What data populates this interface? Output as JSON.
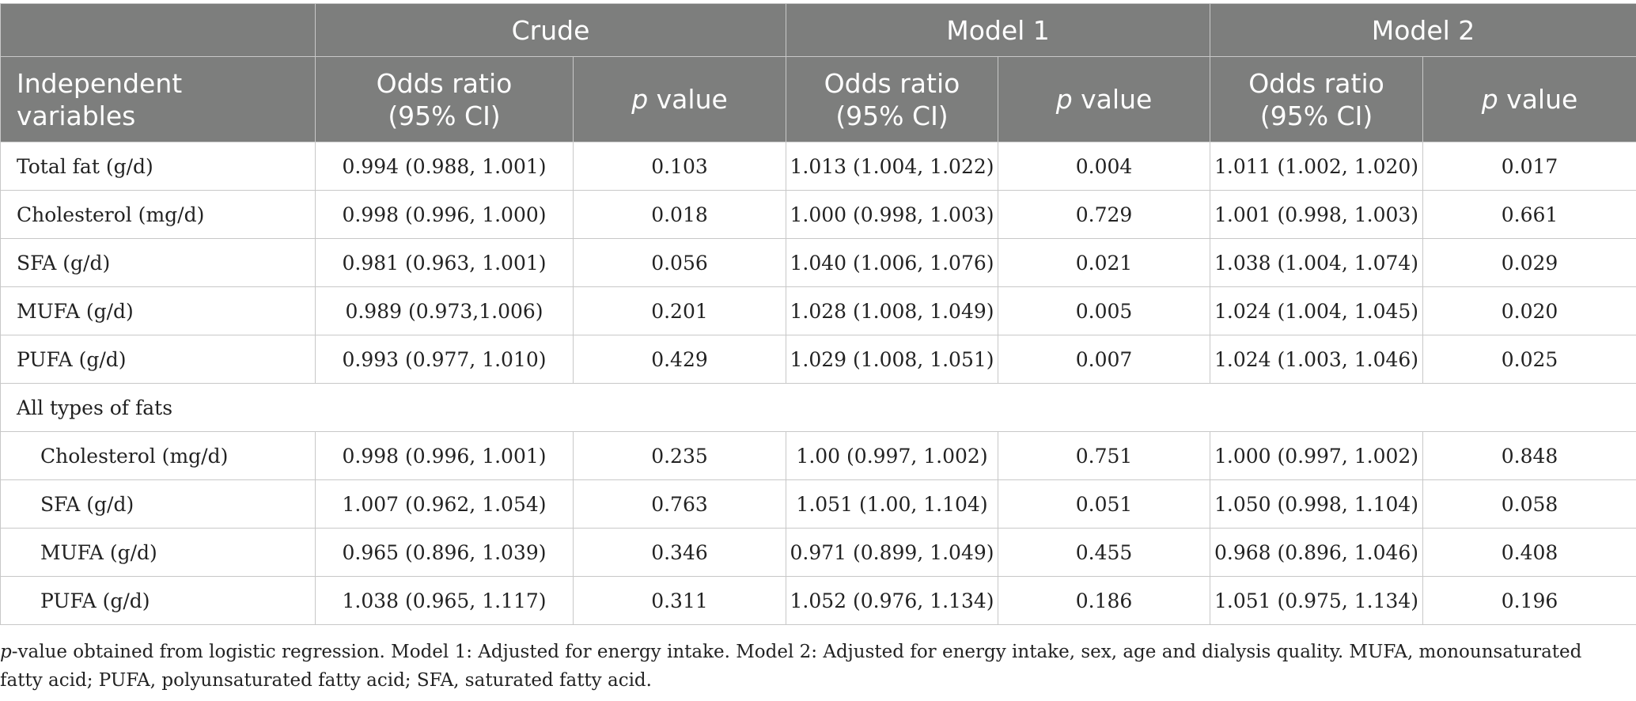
{
  "table": {
    "groups": {
      "crude": "Crude",
      "model1": "Model 1",
      "model2": "Model 2"
    },
    "columns": {
      "independent_line1": "Independent",
      "independent_line2": "variables",
      "odds_line1": "Odds ratio",
      "odds_line2": "(95% CI)",
      "p_italic": "p",
      "p_rest": " value"
    },
    "rows": [
      {
        "label": "Total fat (g/d)",
        "crude_or": "0.994 (0.988, 1.001)",
        "crude_p": "0.103",
        "m1_or": "1.013 (1.004, 1.022)",
        "m1_p": "0.004",
        "m2_or": "1.011 (1.002, 1.020)",
        "m2_p": "0.017"
      },
      {
        "label": "Cholesterol (mg/d)",
        "crude_or": "0.998 (0.996, 1.000)",
        "crude_p": "0.018",
        "m1_or": "1.000 (0.998, 1.003)",
        "m1_p": "0.729",
        "m2_or": "1.001 (0.998, 1.003)",
        "m2_p": "0.661"
      },
      {
        "label": "SFA (g/d)",
        "crude_or": "0.981 (0.963, 1.001)",
        "crude_p": "0.056",
        "m1_or": "1.040 (1.006, 1.076)",
        "m1_p": "0.021",
        "m2_or": "1.038 (1.004, 1.074)",
        "m2_p": "0.029"
      },
      {
        "label": "MUFA (g/d)",
        "crude_or": "0.989 (0.973,1.006)",
        "crude_p": "0.201",
        "m1_or": "1.028 (1.008, 1.049)",
        "m1_p": "0.005",
        "m2_or": "1.024 (1.004, 1.045)",
        "m2_p": "0.020"
      },
      {
        "label": "PUFA (g/d)",
        "crude_or": "0.993 (0.977, 1.010)",
        "crude_p": "0.429",
        "m1_or": "1.029 (1.008, 1.051)",
        "m1_p": "0.007",
        "m2_or": "1.024 (1.003, 1.046)",
        "m2_p": "0.025"
      }
    ],
    "section_label": "All types of fats",
    "section_rows": [
      {
        "label": "Cholesterol (mg/d)",
        "crude_or": "0.998 (0.996, 1.001)",
        "crude_p": "0.235",
        "m1_or": "1.00 (0.997, 1.002)",
        "m1_p": "0.751",
        "m2_or": "1.000 (0.997, 1.002)",
        "m2_p": "0.848"
      },
      {
        "label": "SFA (g/d)",
        "crude_or": "1.007 (0.962, 1.054)",
        "crude_p": "0.763",
        "m1_or": "1.051 (1.00, 1.104)",
        "m1_p": "0.051",
        "m2_or": "1.050 (0.998, 1.104)",
        "m2_p": "0.058"
      },
      {
        "label": "MUFA (g/d)",
        "crude_or": "0.965 (0.896, 1.039)",
        "crude_p": "0.346",
        "m1_or": "0.971 (0.899, 1.049)",
        "m1_p": "0.455",
        "m2_or": "0.968 (0.896, 1.046)",
        "m2_p": "0.408"
      },
      {
        "label": "PUFA (g/d)",
        "crude_or": "1.038 (0.965, 1.117)",
        "crude_p": "0.311",
        "m1_or": "1.052 (0.976, 1.134)",
        "m1_p": "0.186",
        "m2_or": "1.051 (0.975, 1.134)",
        "m2_p": "0.196"
      }
    ]
  },
  "footnote": {
    "p_italic": "p",
    "text": "-value obtained from logistic regression. Model 1: Adjusted for energy intake. Model 2: Adjusted for energy intake, sex, age and dialysis quality. MUFA, monounsaturated fatty acid; PUFA, polyunsaturated fatty acid; SFA, saturated fatty acid."
  },
  "colors": {
    "header_bg": "#7d7e7d",
    "header_text": "#ffffff",
    "border": "#c8c8c8",
    "body_text": "#222222"
  }
}
